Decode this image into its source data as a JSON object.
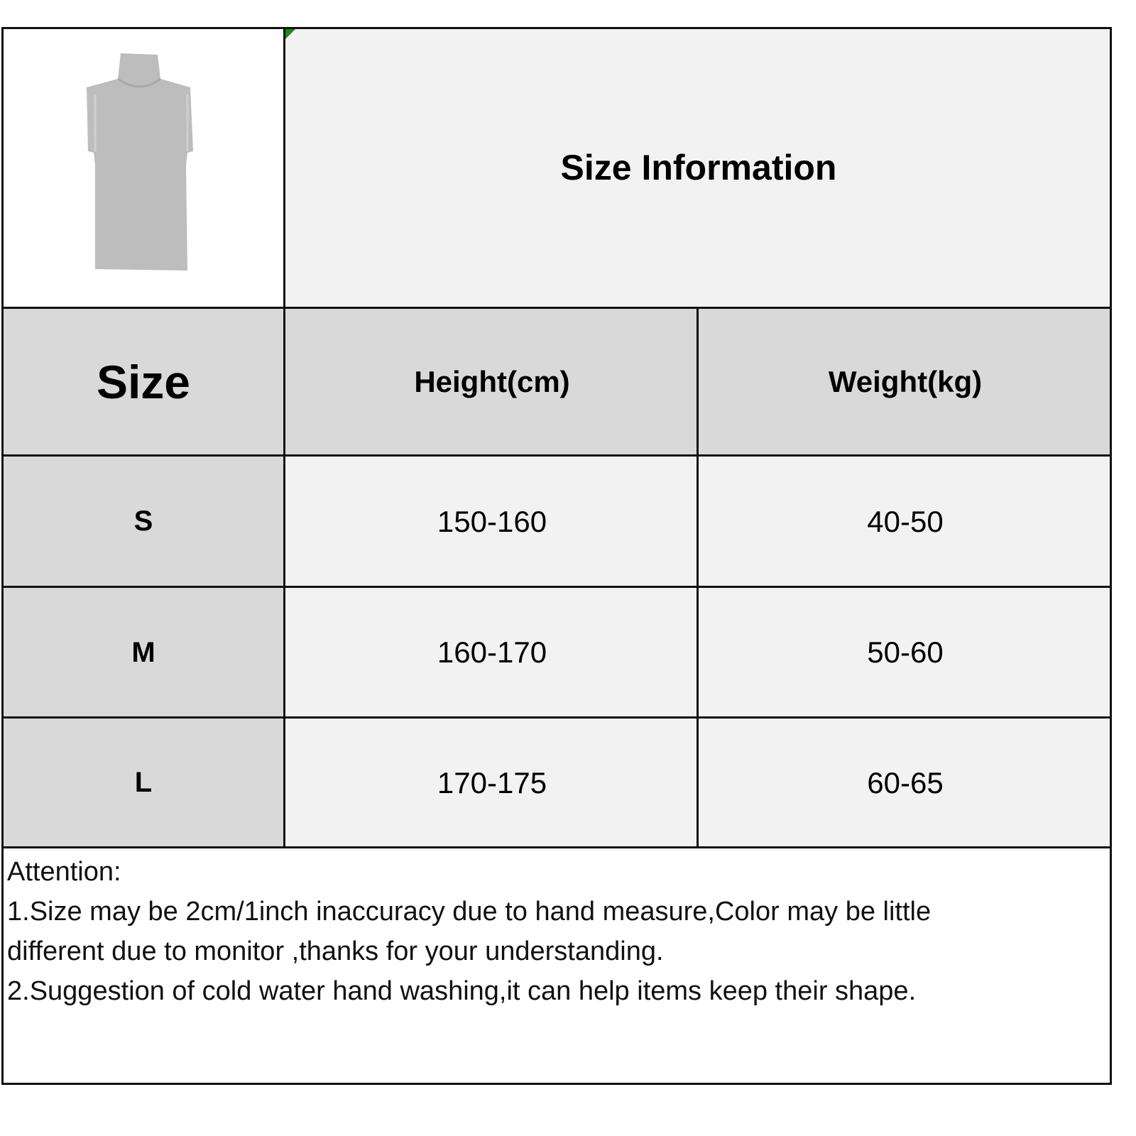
{
  "title": "Size Information",
  "product_image": "gray-sleeveless-turtleneck-top",
  "table": {
    "headers": [
      "Size",
      "Height(cm)",
      "Weight(kg)"
    ],
    "rows": [
      {
        "size": "S",
        "height": "150-160",
        "weight": "40-50"
      },
      {
        "size": "M",
        "height": "160-170",
        "weight": "50-60"
      },
      {
        "size": "L",
        "height": "170-175",
        "weight": "60-65"
      }
    ]
  },
  "notes": {
    "heading": "Attention:",
    "line1a": "1.Size may be 2cm/1inch inaccuracy due to hand measure,Color may be little",
    "line1b": "different due to monitor ,thanks for your understanding.",
    "line2": "2.Suggestion of cold water hand washing,it can help items keep their shape."
  },
  "colors": {
    "header_bg": "#d9d9d9",
    "cell_bg": "#f2f2f2",
    "border": "#111111"
  }
}
